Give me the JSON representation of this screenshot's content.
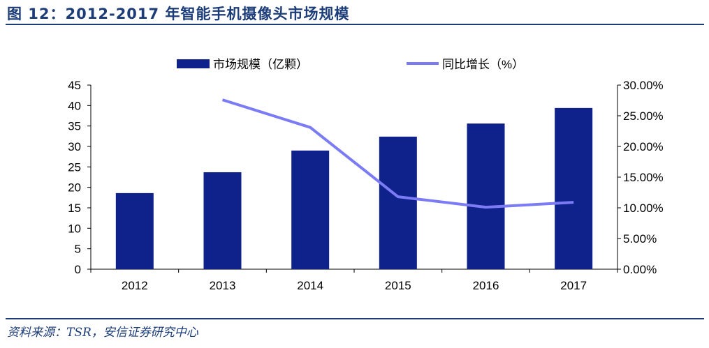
{
  "title": "图 12：2012-2017 年智能手机摄像头市场规模",
  "source": "资料来源：TSR，安信证券研究中心",
  "chart_data": {
    "type": "bar+line",
    "categories": [
      "2012",
      "2013",
      "2014",
      "2015",
      "2016",
      "2017"
    ],
    "series": [
      {
        "name": "市场规模（亿颗）",
        "type": "bar",
        "axis": "left",
        "color": "#0f218b",
        "values": [
          18.6,
          23.7,
          29.0,
          32.4,
          35.6,
          39.4
        ]
      },
      {
        "name": "同比增长（%）",
        "type": "line",
        "axis": "right",
        "color": "#7b7bf5",
        "values": [
          null,
          27.6,
          23.1,
          11.8,
          10.1,
          10.9
        ]
      }
    ],
    "left_axis": {
      "ylim": [
        0,
        45
      ],
      "ticks": [
        "0",
        "5",
        "10",
        "15",
        "20",
        "25",
        "30",
        "35",
        "40",
        "45"
      ]
    },
    "right_axis": {
      "ylim": [
        0,
        30
      ],
      "ticks": [
        "0.00%",
        "5.00%",
        "10.00%",
        "15.00%",
        "20.00%",
        "25.00%",
        "30.00%"
      ]
    },
    "legend_position": "top",
    "grid": false
  }
}
